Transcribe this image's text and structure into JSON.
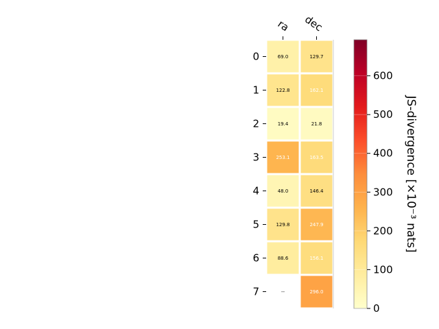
{
  "chart_data": {
    "type": "heatmap",
    "columns": [
      "ra",
      "dec"
    ],
    "rows": [
      "0",
      "1",
      "2",
      "3",
      "4",
      "5",
      "6",
      "7"
    ],
    "values": [
      [
        69.0,
        129.7
      ],
      [
        122.8,
        162.1
      ],
      [
        19.4,
        21.8
      ],
      [
        253.1,
        163.5
      ],
      [
        48.0,
        146.4
      ],
      [
        129.8,
        247.9
      ],
      [
        88.6,
        156.1
      ],
      [
        null,
        296.0
      ]
    ],
    "cell_labels": [
      [
        "69.0",
        "129.7"
      ],
      [
        "122.8",
        "162.1"
      ],
      [
        "19.4",
        "21.8"
      ],
      [
        "253.1",
        "163.5"
      ],
      [
        "48.0",
        "146.4"
      ],
      [
        "129.8",
        "247.9"
      ],
      [
        "88.6",
        "156.1"
      ],
      [
        "--",
        "296.0"
      ]
    ],
    "colorbar": {
      "label": "JS-divergence [×10⁻³ nats]",
      "min": 0,
      "max": 693,
      "ticks": [
        "0",
        "100",
        "200",
        "300",
        "400",
        "500",
        "600"
      ],
      "tick_values": [
        0,
        100,
        200,
        300,
        400,
        500,
        600
      ],
      "colormap": "YlOrRd"
    }
  }
}
